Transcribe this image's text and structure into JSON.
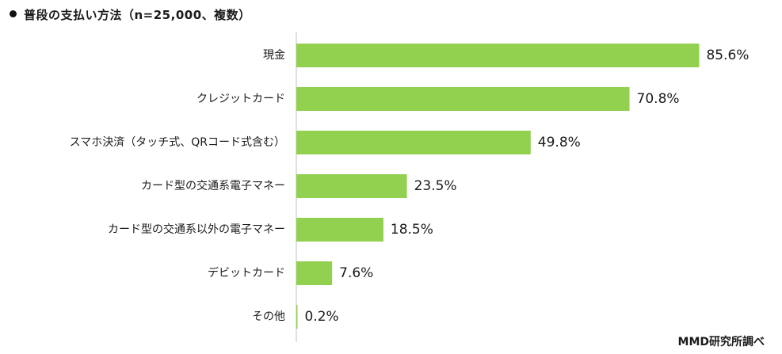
{
  "chart_data": {
    "type": "bar",
    "orientation": "horizontal",
    "title": "普段の支払い方法（n=25,000、複数）",
    "source": "MMD研究所調べ",
    "categories": [
      "現金",
      "クレジットカード",
      "スマホ決済（タッチ式、QRコード式含む）",
      "カード型の交通系電子マネー",
      "カード型の交通系以外の電子マネー",
      "デビットカード",
      "その他"
    ],
    "values": [
      85.6,
      70.8,
      49.8,
      23.5,
      18.5,
      7.6,
      0.2
    ],
    "value_labels": [
      "85.6%",
      "70.8%",
      "49.8%",
      "23.5%",
      "18.5%",
      "7.6%",
      "0.2%"
    ],
    "unit": "%",
    "xlim": [
      0,
      100
    ],
    "grid": false,
    "legend": "none",
    "colors": {
      "bar": "#92d050",
      "axis": "#bfbfbf",
      "text": "#1a1a1a"
    }
  }
}
